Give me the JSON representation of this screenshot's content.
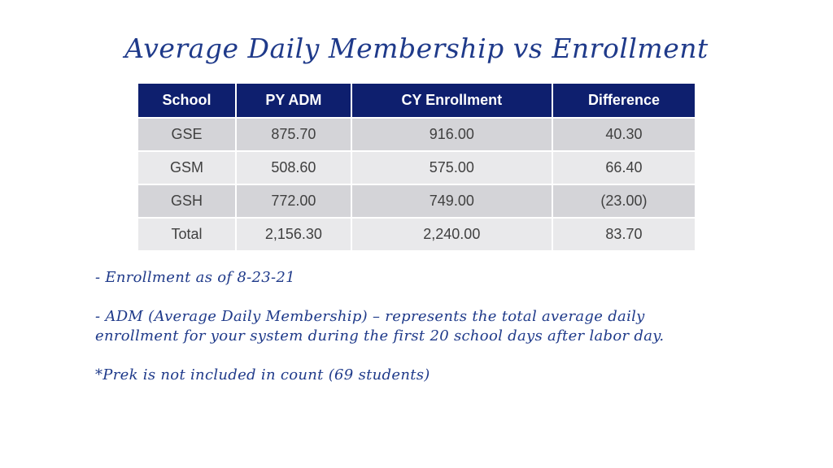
{
  "title": "Average Daily Membership vs Enrollment",
  "table": {
    "headers": [
      "School",
      "PY ADM",
      "CY Enrollment",
      "Difference"
    ],
    "rows": [
      [
        "GSE",
        "875.70",
        "916.00",
        "40.30"
      ],
      [
        "GSM",
        "508.60",
        "575.00",
        "66.40"
      ],
      [
        "GSH",
        "772.00",
        "749.00",
        "(23.00)"
      ],
      [
        "Total",
        "2,156.30",
        "2,240.00",
        "83.70"
      ]
    ]
  },
  "notes": {
    "enrollment_date": "- Enrollment as of 8-23-21",
    "adm_line1": "- ADM (Average Daily Membership) – represents the total average daily",
    "adm_line2": "enrollment for your system during the first 20 school days after labor day.",
    "prek": "*Prek is not included in count (69 students)"
  },
  "colors": {
    "header_bg": "#0e1f6e",
    "title_text": "#1f3a8a",
    "row_dark": "#d4d4d8",
    "row_light": "#e9e9eb"
  }
}
